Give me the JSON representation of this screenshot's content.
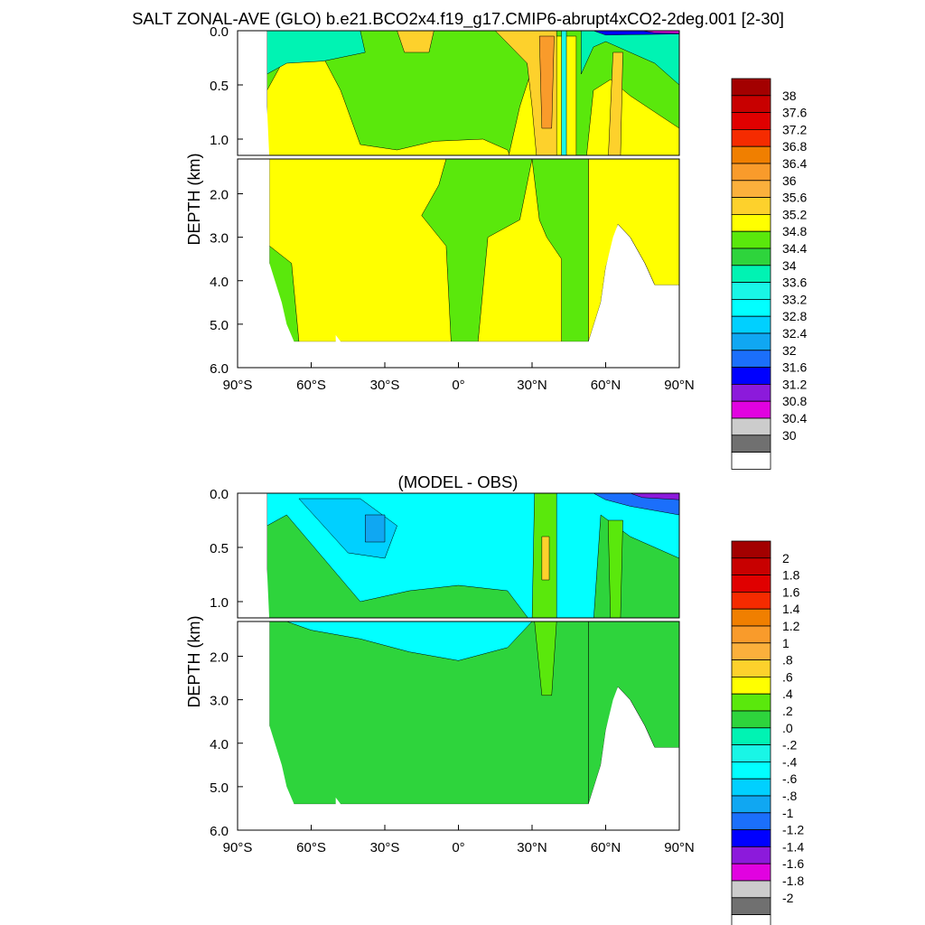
{
  "title": "SALT ZONAL-AVE (GLO) b.e21.BCO2x4.f19_g17.CMIP6-abrupt4xCO2-2deg.001 [2-30]",
  "chart_data": [
    {
      "type": "heatmap",
      "title": "",
      "ylabel": "DEPTH (km)",
      "x_ticks": [
        "90°S",
        "60°S",
        "30°S",
        "0°",
        "30°N",
        "60°N",
        "90°N"
      ],
      "xlim": [
        -90,
        90
      ],
      "y_ticks_upper": [
        "0.0",
        "0.5",
        "1.0"
      ],
      "y_ticks_lower": [
        "2.0",
        "3.0",
        "4.0",
        "5.0",
        "6.0"
      ],
      "ylim": [
        0,
        6
      ],
      "colorbar": {
        "labels": [
          "38",
          "37.6",
          "37.2",
          "36.8",
          "36.4",
          "36",
          "35.6",
          "35.2",
          "34.8",
          "34.4",
          "34",
          "33.6",
          "33.2",
          "32.8",
          "32.4",
          "32",
          "31.6",
          "31.2",
          "30.8",
          "30.4",
          "30"
        ],
        "colors": [
          "#a30000",
          "#c80000",
          "#e00000",
          "#f52b00",
          "#f07f00",
          "#f99b2b",
          "#fbb03c",
          "#fdd12c",
          "#ffff00",
          "#5ae80c",
          "#2ed43c",
          "#00f3b3",
          "#19f6e6",
          "#02ffff",
          "#00d0ff",
          "#10a7f2",
          "#1b6ffb",
          "#0000ff",
          "#8c1adb",
          "#e102e0",
          "#cccccc",
          "#707070",
          "#ffffff"
        ]
      }
    },
    {
      "type": "heatmap",
      "title": "(MODEL - OBS)",
      "ylabel": "DEPTH (km)",
      "x_ticks": [
        "90°S",
        "60°S",
        "30°S",
        "0°",
        "30°N",
        "60°N",
        "90°N"
      ],
      "xlim": [
        -90,
        90
      ],
      "y_ticks_upper": [
        "0.0",
        "0.5",
        "1.0"
      ],
      "y_ticks_lower": [
        "2.0",
        "3.0",
        "4.0",
        "5.0",
        "6.0"
      ],
      "ylim": [
        0,
        6
      ],
      "colorbar": {
        "labels": [
          "2",
          "1.8",
          "1.6",
          "1.4",
          "1.2",
          "1",
          ".8",
          ".6",
          ".4",
          ".2",
          ".0",
          "-.2",
          "-.4",
          "-.6",
          "-.8",
          "-1",
          "-1.2",
          "-1.4",
          "-1.6",
          "-1.8",
          "-2"
        ],
        "colors": [
          "#a30000",
          "#c80000",
          "#e00000",
          "#f52b00",
          "#f07f00",
          "#f99b2b",
          "#fbb03c",
          "#fdd12c",
          "#ffff00",
          "#5ae80c",
          "#2ed43c",
          "#00f3b3",
          "#19f6e6",
          "#02ffff",
          "#00d0ff",
          "#10a7f2",
          "#1b6ffb",
          "#0000ff",
          "#8c1adb",
          "#e102e0",
          "#cccccc",
          "#707070",
          "#ffffff"
        ]
      }
    }
  ]
}
